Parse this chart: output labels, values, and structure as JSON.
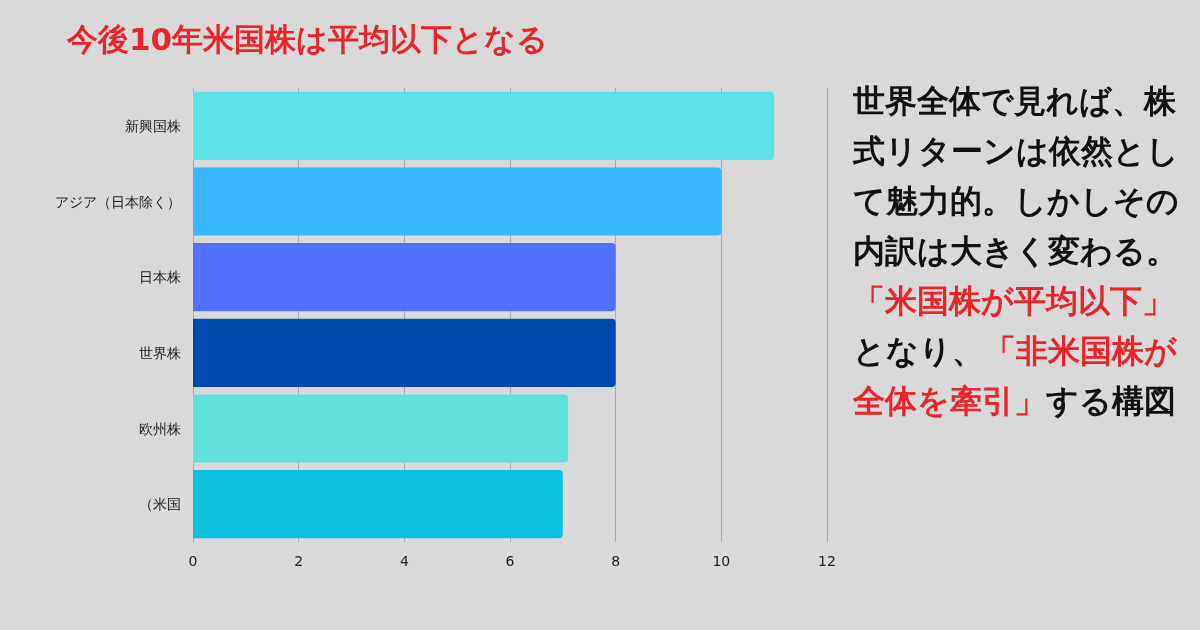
{
  "chart_data": {
    "type": "bar",
    "orientation": "horizontal",
    "title": "今後10年米国株は平均以下となる",
    "categories": [
      "新興国株",
      "アジア（日本除く）",
      "日本株",
      "世界株",
      "欧州株",
      "（米国"
    ],
    "values": [
      11,
      10,
      8,
      8,
      7.1,
      7.0
    ],
    "colors": [
      "#5ce1e6",
      "#38b6ff",
      "#5271ff",
      "#004aad",
      "#5fdfdc",
      "#0cc0df"
    ],
    "xlim": [
      0,
      12
    ],
    "xticks": [
      0,
      2,
      4,
      6,
      8,
      10,
      12
    ],
    "grid": "x",
    "annotations": [
      "世界全体で見れば、株式リターンは依然として魅力的。しかしその内訳は大きく変わる。「米国株が平均以下」となり、「非米国株が全体を牽引」する構図"
    ]
  }
}
